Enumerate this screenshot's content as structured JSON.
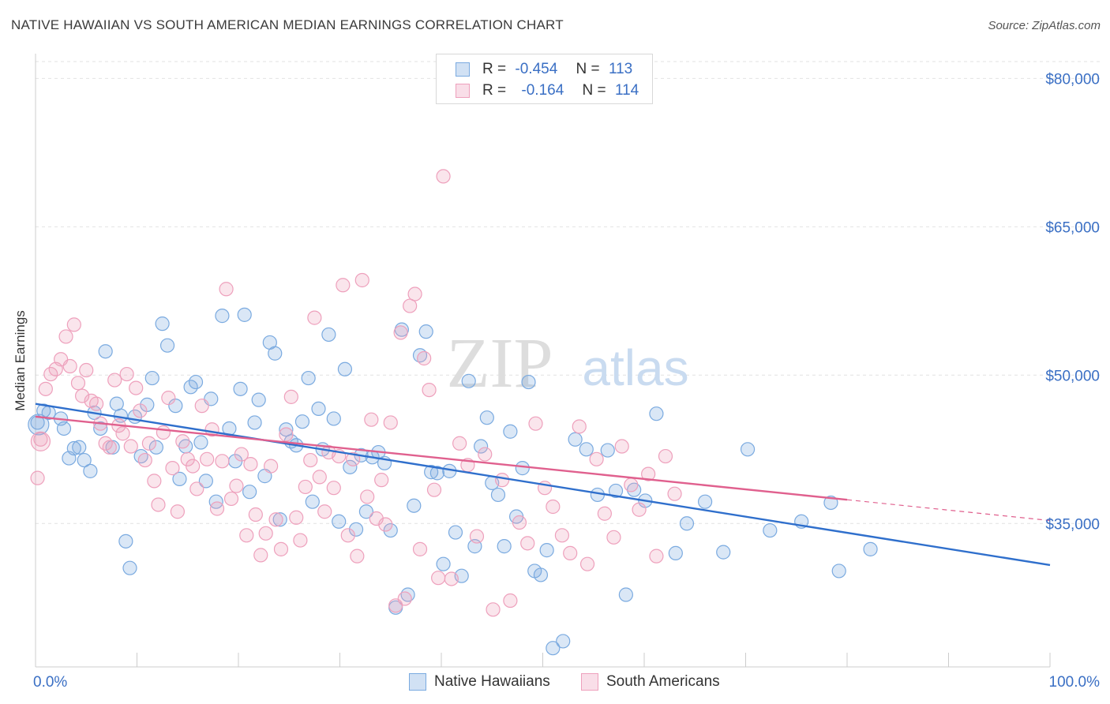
{
  "header": {
    "title": "NATIVE HAWAIIAN VS SOUTH AMERICAN MEDIAN EARNINGS CORRELATION CHART",
    "source": "Source: ZipAtlas.com"
  },
  "watermark": {
    "zip": "ZIP",
    "atlas": "atlas"
  },
  "legend": {
    "r_label": "R =",
    "n_label": "N =",
    "series": [
      {
        "r": "-0.454",
        "n": "113"
      },
      {
        "r": "-0.164",
        "n": "114"
      }
    ]
  },
  "chart_data": {
    "type": "scatter",
    "title": "NATIVE HAWAIIAN VS SOUTH AMERICAN MEDIAN EARNINGS CORRELATION CHART",
    "ylabel": "Median Earnings",
    "xlabel": "",
    "x_tick_labels": [
      "0.0%",
      "100.0%"
    ],
    "y_tick_labels": [
      "$35,000",
      "$50,000",
      "$65,000",
      "$80,000"
    ],
    "y_ticks": [
      35000,
      50000,
      65000,
      80000
    ],
    "xlim": [
      0,
      100
    ],
    "ylim": [
      20500,
      82500
    ],
    "grid": true,
    "legend_position": "bottom",
    "series": [
      {
        "name": "Native Hawaiians",
        "color": "#7aaae0",
        "fill": "rgba(122,170,224,0.28)",
        "trend_color": "#2f6fcc",
        "trend": {
          "x": [
            0,
            100
          ],
          "y": [
            47100,
            30800
          ]
        },
        "points": [
          [
            0.2,
            45200
          ],
          [
            0.8,
            46400
          ],
          [
            1.3,
            46200
          ],
          [
            2.5,
            45600
          ],
          [
            2.8,
            44600
          ],
          [
            3.3,
            41600
          ],
          [
            3.8,
            42600
          ],
          [
            4.3,
            42700
          ],
          [
            4.8,
            41400
          ],
          [
            5.4,
            40300
          ],
          [
            5.8,
            46200
          ],
          [
            6.4,
            44600
          ],
          [
            6.9,
            52400
          ],
          [
            7.6,
            42700
          ],
          [
            8.0,
            47100
          ],
          [
            8.4,
            45900
          ],
          [
            8.9,
            33200
          ],
          [
            9.3,
            30500
          ],
          [
            9.8,
            45800
          ],
          [
            10.4,
            41800
          ],
          [
            11.0,
            47000
          ],
          [
            11.5,
            49700
          ],
          [
            11.9,
            42700
          ],
          [
            12.5,
            55200
          ],
          [
            13.0,
            53000
          ],
          [
            13.8,
            46900
          ],
          [
            14.2,
            39500
          ],
          [
            14.8,
            42800
          ],
          [
            15.3,
            48800
          ],
          [
            15.8,
            49300
          ],
          [
            16.3,
            43200
          ],
          [
            16.8,
            39300
          ],
          [
            17.3,
            47600
          ],
          [
            17.8,
            37200
          ],
          [
            18.4,
            56000
          ],
          [
            19.1,
            44600
          ],
          [
            19.7,
            41300
          ],
          [
            20.2,
            48600
          ],
          [
            20.6,
            56100
          ],
          [
            21.1,
            38200
          ],
          [
            21.6,
            45200
          ],
          [
            22.0,
            47500
          ],
          [
            22.6,
            39800
          ],
          [
            23.1,
            53300
          ],
          [
            23.6,
            52200
          ],
          [
            24.1,
            35400
          ],
          [
            24.7,
            44500
          ],
          [
            25.2,
            43300
          ],
          [
            25.7,
            42900
          ],
          [
            26.3,
            45300
          ],
          [
            26.9,
            49700
          ],
          [
            27.3,
            37200
          ],
          [
            27.9,
            46600
          ],
          [
            28.3,
            42500
          ],
          [
            28.9,
            54100
          ],
          [
            29.4,
            45600
          ],
          [
            29.9,
            35200
          ],
          [
            30.5,
            50600
          ],
          [
            31.0,
            40700
          ],
          [
            31.6,
            34400
          ],
          [
            32.1,
            41900
          ],
          [
            32.6,
            36200
          ],
          [
            33.2,
            41700
          ],
          [
            33.8,
            42200
          ],
          [
            34.4,
            41100
          ],
          [
            35.0,
            34300
          ],
          [
            35.5,
            26500
          ],
          [
            36.1,
            54600
          ],
          [
            36.7,
            27800
          ],
          [
            37.3,
            36800
          ],
          [
            37.9,
            52000
          ],
          [
            38.5,
            54400
          ],
          [
            39.0,
            40200
          ],
          [
            39.6,
            40100
          ],
          [
            40.2,
            30900
          ],
          [
            40.8,
            40300
          ],
          [
            41.4,
            34100
          ],
          [
            42.0,
            29700
          ],
          [
            42.7,
            49400
          ],
          [
            43.3,
            32700
          ],
          [
            43.9,
            42800
          ],
          [
            44.5,
            45700
          ],
          [
            45.0,
            39100
          ],
          [
            45.6,
            37900
          ],
          [
            46.2,
            32700
          ],
          [
            46.8,
            44300
          ],
          [
            47.4,
            35700
          ],
          [
            48.0,
            40600
          ],
          [
            48.6,
            49300
          ],
          [
            49.2,
            30200
          ],
          [
            49.8,
            29800
          ],
          [
            50.4,
            32300
          ],
          [
            51.0,
            22400
          ],
          [
            52.0,
            23100
          ],
          [
            53.2,
            43500
          ],
          [
            54.3,
            42500
          ],
          [
            55.4,
            37900
          ],
          [
            56.4,
            42400
          ],
          [
            57.2,
            38300
          ],
          [
            58.2,
            27800
          ],
          [
            59.0,
            38400
          ],
          [
            60.1,
            37300
          ],
          [
            61.2,
            46100
          ],
          [
            63.1,
            32000
          ],
          [
            64.2,
            35000
          ],
          [
            66.0,
            37200
          ],
          [
            67.8,
            32100
          ],
          [
            70.2,
            42500
          ],
          [
            72.4,
            34300
          ],
          [
            75.5,
            35200
          ],
          [
            78.4,
            37100
          ],
          [
            79.2,
            30200
          ],
          [
            82.3,
            32400
          ]
        ]
      },
      {
        "name": "South Americans",
        "color": "#eea0bc",
        "fill": "rgba(238,160,188,0.28)",
        "trend_color": "#e0608e",
        "trend": {
          "x": [
            0,
            80
          ],
          "y": [
            45800,
            37400
          ]
        },
        "trend_dashed": {
          "x": [
            80,
            100
          ],
          "y": [
            37400,
            35300
          ]
        },
        "points": [
          [
            0.2,
            39600
          ],
          [
            0.5,
            43500
          ],
          [
            1.0,
            48600
          ],
          [
            1.5,
            50100
          ],
          [
            2.0,
            50600
          ],
          [
            2.5,
            51600
          ],
          [
            3.0,
            53900
          ],
          [
            3.4,
            50900
          ],
          [
            3.8,
            55100
          ],
          [
            4.2,
            49200
          ],
          [
            4.6,
            47900
          ],
          [
            5.0,
            50500
          ],
          [
            5.5,
            47400
          ],
          [
            6.0,
            47100
          ],
          [
            6.4,
            45100
          ],
          [
            6.9,
            43100
          ],
          [
            7.3,
            42700
          ],
          [
            7.8,
            49500
          ],
          [
            8.2,
            44900
          ],
          [
            8.6,
            44100
          ],
          [
            9.0,
            50100
          ],
          [
            9.4,
            42800
          ],
          [
            9.9,
            48700
          ],
          [
            10.3,
            46400
          ],
          [
            10.8,
            41400
          ],
          [
            11.2,
            43100
          ],
          [
            11.7,
            39300
          ],
          [
            12.1,
            36900
          ],
          [
            12.6,
            44200
          ],
          [
            13.1,
            47700
          ],
          [
            13.5,
            40600
          ],
          [
            14.0,
            36200
          ],
          [
            14.5,
            43300
          ],
          [
            15.0,
            41500
          ],
          [
            15.5,
            40800
          ],
          [
            15.9,
            38500
          ],
          [
            16.4,
            46900
          ],
          [
            16.9,
            41500
          ],
          [
            17.4,
            44500
          ],
          [
            17.9,
            36500
          ],
          [
            18.4,
            41300
          ],
          [
            18.8,
            58700
          ],
          [
            19.3,
            37500
          ],
          [
            19.8,
            38800
          ],
          [
            20.3,
            42000
          ],
          [
            20.8,
            33800
          ],
          [
            21.2,
            41000
          ],
          [
            21.7,
            35900
          ],
          [
            22.2,
            31800
          ],
          [
            22.7,
            34000
          ],
          [
            23.2,
            40800
          ],
          [
            23.7,
            35400
          ],
          [
            24.2,
            32400
          ],
          [
            24.7,
            44000
          ],
          [
            25.2,
            47800
          ],
          [
            25.7,
            35600
          ],
          [
            26.1,
            33300
          ],
          [
            26.6,
            38700
          ],
          [
            27.1,
            41400
          ],
          [
            27.5,
            55800
          ],
          [
            28.0,
            39700
          ],
          [
            28.5,
            36200
          ],
          [
            28.9,
            42200
          ],
          [
            29.4,
            38600
          ],
          [
            29.9,
            41800
          ],
          [
            30.3,
            59100
          ],
          [
            30.8,
            33800
          ],
          [
            31.3,
            41500
          ],
          [
            31.7,
            31700
          ],
          [
            32.2,
            59600
          ],
          [
            32.7,
            37700
          ],
          [
            33.1,
            45500
          ],
          [
            33.6,
            35500
          ],
          [
            34.1,
            39400
          ],
          [
            34.5,
            34900
          ],
          [
            35.0,
            45200
          ],
          [
            35.5,
            26700
          ],
          [
            36.0,
            54300
          ],
          [
            36.4,
            27400
          ],
          [
            36.9,
            57000
          ],
          [
            37.4,
            58200
          ],
          [
            37.9,
            32400
          ],
          [
            38.3,
            51700
          ],
          [
            38.8,
            48500
          ],
          [
            39.3,
            38400
          ],
          [
            39.7,
            29500
          ],
          [
            40.2,
            70100
          ],
          [
            41.0,
            29400
          ],
          [
            41.8,
            43100
          ],
          [
            42.6,
            40900
          ],
          [
            43.5,
            33700
          ],
          [
            44.3,
            42000
          ],
          [
            45.1,
            26300
          ],
          [
            46.0,
            39400
          ],
          [
            46.8,
            27200
          ],
          [
            47.7,
            35100
          ],
          [
            48.5,
            33000
          ],
          [
            49.3,
            45100
          ],
          [
            50.2,
            38600
          ],
          [
            51.0,
            36700
          ],
          [
            51.9,
            33800
          ],
          [
            52.7,
            32000
          ],
          [
            53.6,
            44800
          ],
          [
            54.4,
            30900
          ],
          [
            55.3,
            41500
          ],
          [
            56.1,
            36000
          ],
          [
            57.0,
            33600
          ],
          [
            57.8,
            42800
          ],
          [
            58.7,
            38900
          ],
          [
            59.5,
            36400
          ],
          [
            60.4,
            40000
          ],
          [
            61.2,
            31700
          ],
          [
            62.1,
            41800
          ],
          [
            63.0,
            38000
          ]
        ]
      }
    ]
  }
}
